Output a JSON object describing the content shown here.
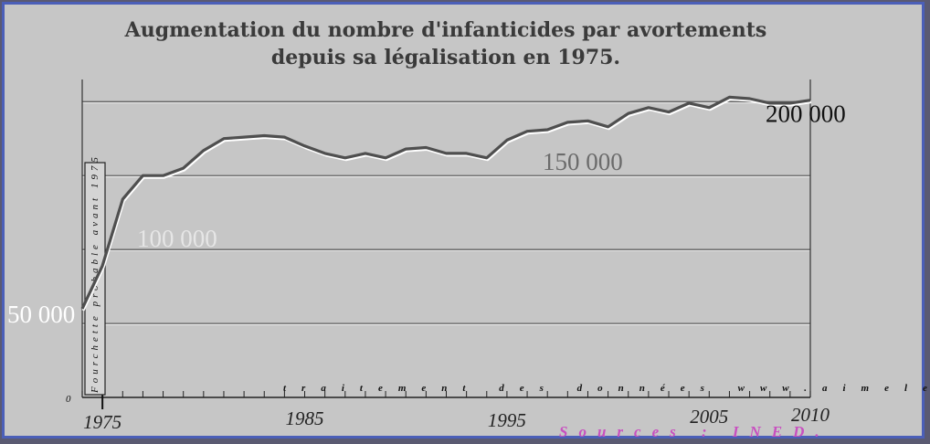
{
  "chart_data": {
    "type": "line",
    "title_lines": [
      "Augmentation du nombre d'infanticides par avortements",
      "depuis sa légalisation en 1975."
    ],
    "x": [
      1974,
      1975,
      1976,
      1977,
      1978,
      1979,
      1980,
      1981,
      1982,
      1983,
      1984,
      1985,
      1986,
      1987,
      1988,
      1989,
      1990,
      1991,
      1992,
      1993,
      1994,
      1995,
      1996,
      1997,
      1998,
      1999,
      2000,
      2001,
      2002,
      2003,
      2004,
      2005,
      2006,
      2007,
      2008,
      2009,
      2010
    ],
    "series": [
      {
        "values": [
          60000,
          89000,
          134000,
          150000,
          150000,
          155000,
          167000,
          175000,
          176000,
          177000,
          176000,
          170000,
          165000,
          162000,
          165000,
          162000,
          168000,
          169000,
          165000,
          165000,
          162000,
          174000,
          180000,
          181000,
          186000,
          187000,
          183000,
          192000,
          196000,
          193000,
          199000,
          196000,
          203000,
          202000,
          199000,
          199000,
          201000
        ],
        "color": "#4f4f4f"
      }
    ],
    "ytick_labels": [
      {
        "value": 50000,
        "label": "50 000",
        "color": "#ffffff"
      },
      {
        "value": 100000,
        "label": "100 000",
        "color": "#e6e6e6"
      },
      {
        "value": 150000,
        "label": "150 000",
        "color": "#6b6b6b"
      },
      {
        "value": 200000,
        "label": "200 000",
        "color": "#111111"
      }
    ],
    "xtick_labels": [
      "1975",
      "1985",
      "1995",
      "2005",
      "2010"
    ],
    "ylim": [
      0,
      215000
    ],
    "xlim": [
      1974,
      2010
    ],
    "grid": true,
    "annotations": {
      "vertical_note": "Fourchette probable avant 1975",
      "credit": "traitement des données www.aimeles.fr",
      "source": "Sources : INED.",
      "zero_label": "0"
    }
  }
}
